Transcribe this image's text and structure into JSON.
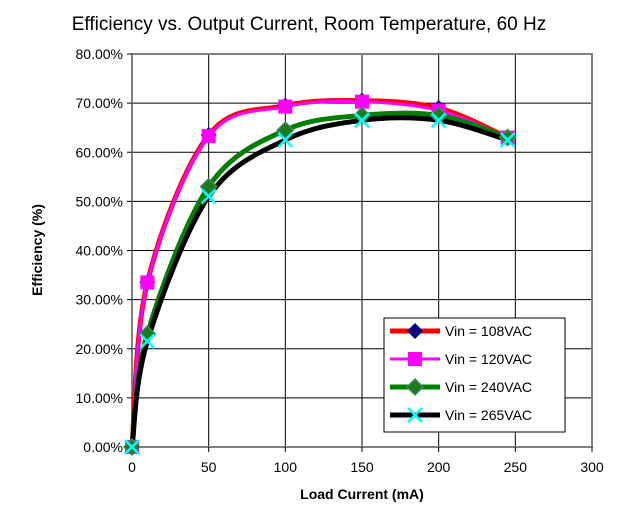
{
  "chart_data": {
    "type": "line",
    "title": "Efficiency vs. Output Current, Room Temperature, 60 Hz",
    "xlabel": "Load Current (mA)",
    "ylabel": "Efficiency (%)",
    "xlim": [
      0,
      300
    ],
    "ylim": [
      0,
      80
    ],
    "xticks": [
      0,
      50,
      100,
      150,
      200,
      250,
      300
    ],
    "yticks": [
      0,
      10,
      20,
      30,
      40,
      50,
      60,
      70,
      80
    ],
    "ytick_labels": [
      "0.00%",
      "10.00%",
      "20.00%",
      "30.00%",
      "40.00%",
      "50.00%",
      "60.00%",
      "70.00%",
      "80.00%"
    ],
    "grid": true,
    "legend_position": "bottom-right",
    "x": [
      0,
      10,
      50,
      100,
      150,
      200,
      245
    ],
    "series": [
      {
        "name": "Vin = 108VAC",
        "color": "#ff0000",
        "marker": "diamond",
        "marker_color": "#000080",
        "values": [
          0,
          33.5,
          63.5,
          69.5,
          70.5,
          69,
          63
        ]
      },
      {
        "name": "Vin = 120VAC",
        "color": "#ff00ff",
        "marker": "square",
        "marker_color": "#ff00ff",
        "values": [
          0,
          33.5,
          63.3,
          69.3,
          70.3,
          68.5,
          63
        ]
      },
      {
        "name": "Vin = 240VAC",
        "color": "#008000",
        "marker": "diamond",
        "marker_color": "#1e7a1e",
        "values": [
          0,
          23,
          53,
          64.5,
          67.5,
          67.5,
          63
        ]
      },
      {
        "name": "Vin = 265VAC",
        "color": "#000000",
        "marker": "x",
        "marker_color": "#00ffff",
        "values": [
          0,
          21.5,
          51,
          62.5,
          66.5,
          66.5,
          62.5
        ]
      }
    ]
  }
}
